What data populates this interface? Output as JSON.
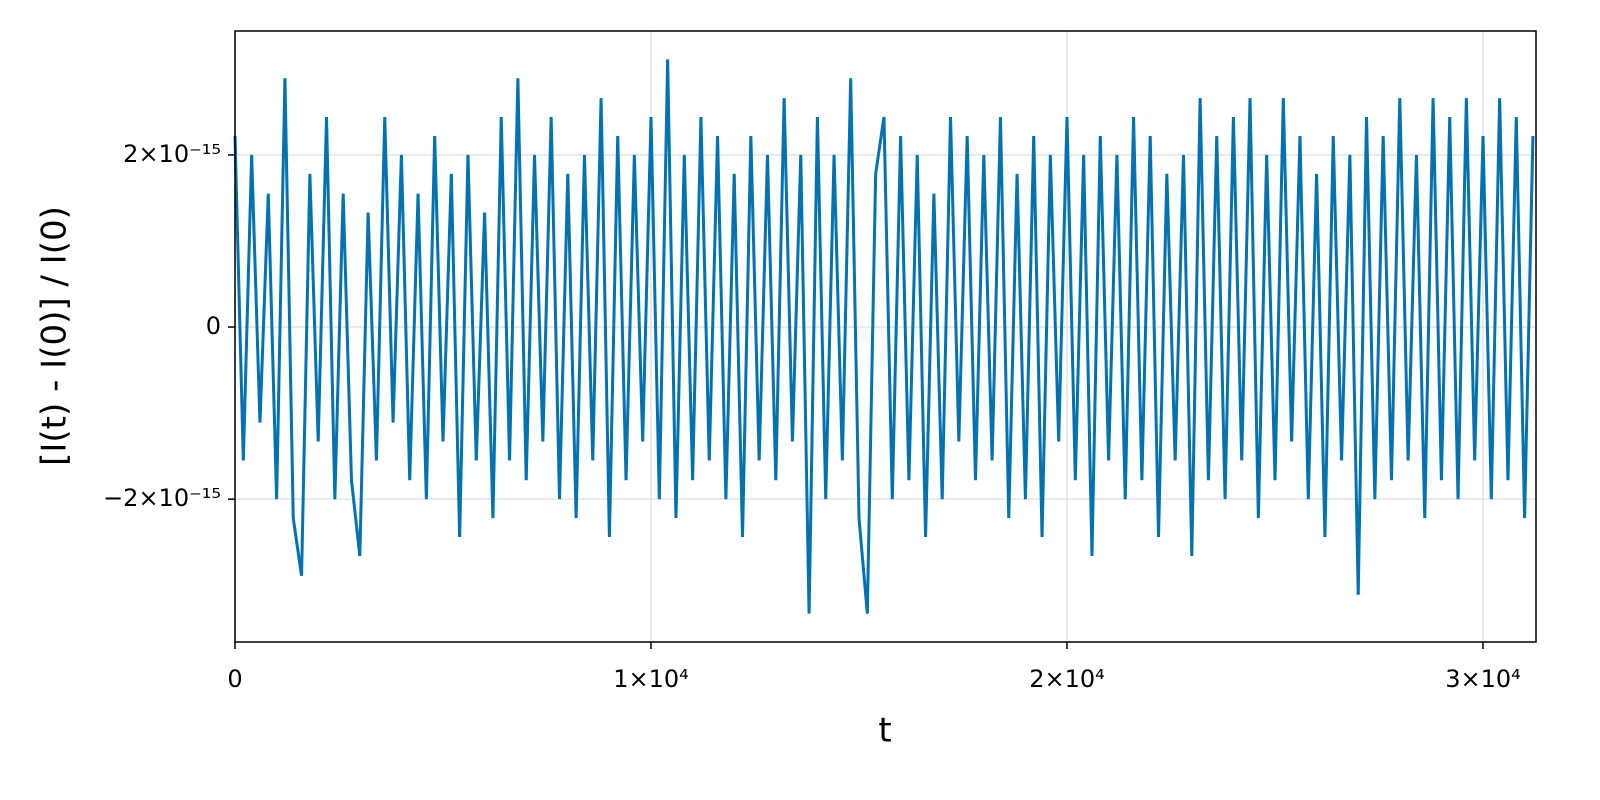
{
  "chart_data": {
    "type": "line",
    "xlabel": "t",
    "ylabel": "[I(t) - I(0)] / I(0)",
    "color": "#0072b2",
    "grid": true,
    "xlim": [
      0,
      31274
    ],
    "ylim": [
      -3.66e-15,
      3.44e-15
    ],
    "xticks": [
      0,
      {
        "value": 10000,
        "label": "1×10⁴"
      },
      {
        "value": 20000,
        "label": "2×10⁴"
      },
      {
        "value": 30000,
        "label": "3×10⁴"
      }
    ],
    "yticks": [
      {
        "value": -2e-15,
        "label": "−2×10⁻¹⁵"
      },
      0,
      {
        "value": 2e-15,
        "label": "2×10⁻¹⁵"
      }
    ],
    "x": [
      0,
      200,
      400,
      600,
      800,
      1000,
      1200,
      1400,
      1600,
      1800,
      2000,
      2200,
      2400,
      2600,
      2800,
      3000,
      3200,
      3400,
      3600,
      3800,
      4000,
      4200,
      4400,
      4600,
      4800,
      5000,
      5200,
      5400,
      5600,
      5800,
      6000,
      6200,
      6400,
      6600,
      6800,
      7000,
      7200,
      7400,
      7600,
      7800,
      8000,
      8200,
      8400,
      8600,
      8800,
      9000,
      9200,
      9400,
      9600,
      9800,
      10000,
      10200,
      10400,
      10600,
      10800,
      11000,
      11200,
      11400,
      11600,
      11800,
      12000,
      12200,
      12400,
      12600,
      12800,
      13000,
      13200,
      13400,
      13600,
      13800,
      14000,
      14200,
      14400,
      14600,
      14800,
      15000,
      15200,
      15400,
      15600,
      15800,
      16000,
      16200,
      16400,
      16600,
      16800,
      17000,
      17200,
      17400,
      17600,
      17800,
      18000,
      18200,
      18400,
      18600,
      18800,
      19000,
      19200,
      19400,
      19600,
      19800,
      20000,
      20200,
      20400,
      20600,
      20800,
      21000,
      21200,
      21400,
      21600,
      21800,
      22000,
      22200,
      22400,
      22600,
      22800,
      23000,
      23200,
      23400,
      23600,
      23800,
      24000,
      24200,
      24400,
      24600,
      24800,
      25000,
      25200,
      25400,
      25600,
      25800,
      26000,
      26200,
      26400,
      26600,
      26800,
      27000,
      27200,
      27400,
      27600,
      27800,
      28000,
      28200,
      28400,
      28600,
      28800,
      29000,
      29200,
      29400,
      29600,
      29800,
      30000,
      30200,
      30400,
      30600,
      30800,
      31000,
      31200
    ],
    "values": [
      2.22e-15,
      -1.55e-15,
      2e-15,
      -1.11e-15,
      1.55e-15,
      -2e-15,
      2.89e-15,
      -2.22e-15,
      -2.89e-15,
      1.78e-15,
      -1.33e-15,
      2.44e-15,
      -2e-15,
      1.55e-15,
      -1.78e-15,
      -2.66e-15,
      1.33e-15,
      -1.55e-15,
      2.44e-15,
      -1.11e-15,
      2e-15,
      -1.78e-15,
      1.55e-15,
      -2e-15,
      2.22e-15,
      -1.33e-15,
      1.78e-15,
      -2.44e-15,
      2e-15,
      -1.55e-15,
      1.33e-15,
      -2.22e-15,
      2.44e-15,
      -1.55e-15,
      2.89e-15,
      -1.78e-15,
      2e-15,
      -1.33e-15,
      2.44e-15,
      -2e-15,
      1.78e-15,
      -2.22e-15,
      2e-15,
      -1.55e-15,
      2.66e-15,
      -2.44e-15,
      2.22e-15,
      -1.78e-15,
      2e-15,
      -1.33e-15,
      2.44e-15,
      -2e-15,
      3.11e-15,
      -2.22e-15,
      2e-15,
      -1.78e-15,
      2.44e-15,
      -1.55e-15,
      2.22e-15,
      -2e-15,
      1.78e-15,
      -2.44e-15,
      2.22e-15,
      -1.55e-15,
      2e-15,
      -1.78e-15,
      2.66e-15,
      -1.33e-15,
      2e-15,
      -3.33e-15,
      2.44e-15,
      -2e-15,
      2e-15,
      -1.55e-15,
      2.89e-15,
      -2.22e-15,
      -3.33e-15,
      1.78e-15,
      2.44e-15,
      -2e-15,
      2.22e-15,
      -1.78e-15,
      2e-15,
      -2.44e-15,
      1.55e-15,
      -2e-15,
      2.44e-15,
      -1.33e-15,
      2.22e-15,
      -1.78e-15,
      2e-15,
      -1.55e-15,
      2.44e-15,
      -2.22e-15,
      1.78e-15,
      -2e-15,
      2.22e-15,
      -2.44e-15,
      2e-15,
      -1.33e-15,
      2.44e-15,
      -1.78e-15,
      2e-15,
      -2.66e-15,
      2.22e-15,
      -1.55e-15,
      2e-15,
      -2e-15,
      2.44e-15,
      -1.78e-15,
      2.22e-15,
      -2.44e-15,
      1.78e-15,
      -1.55e-15,
      2e-15,
      -2.66e-15,
      2.66e-15,
      -1.78e-15,
      2.22e-15,
      -2e-15,
      2.44e-15,
      -1.55e-15,
      2.66e-15,
      -2.22e-15,
      2e-15,
      -1.78e-15,
      2.66e-15,
      -1.33e-15,
      2.22e-15,
      -2e-15,
      1.78e-15,
      -2.44e-15,
      2.22e-15,
      -1.55e-15,
      2e-15,
      -3.11e-15,
      2.44e-15,
      -2e-15,
      2.22e-15,
      -1.78e-15,
      2.66e-15,
      -1.55e-15,
      2e-15,
      -2.22e-15,
      2.66e-15,
      -1.78e-15,
      2.44e-15,
      -2e-15,
      2.66e-15,
      -1.55e-15,
      2.22e-15,
      -2e-15,
      2.66e-15,
      -1.78e-15,
      2.44e-15,
      -2.22e-15,
      2.22e-15
    ]
  }
}
